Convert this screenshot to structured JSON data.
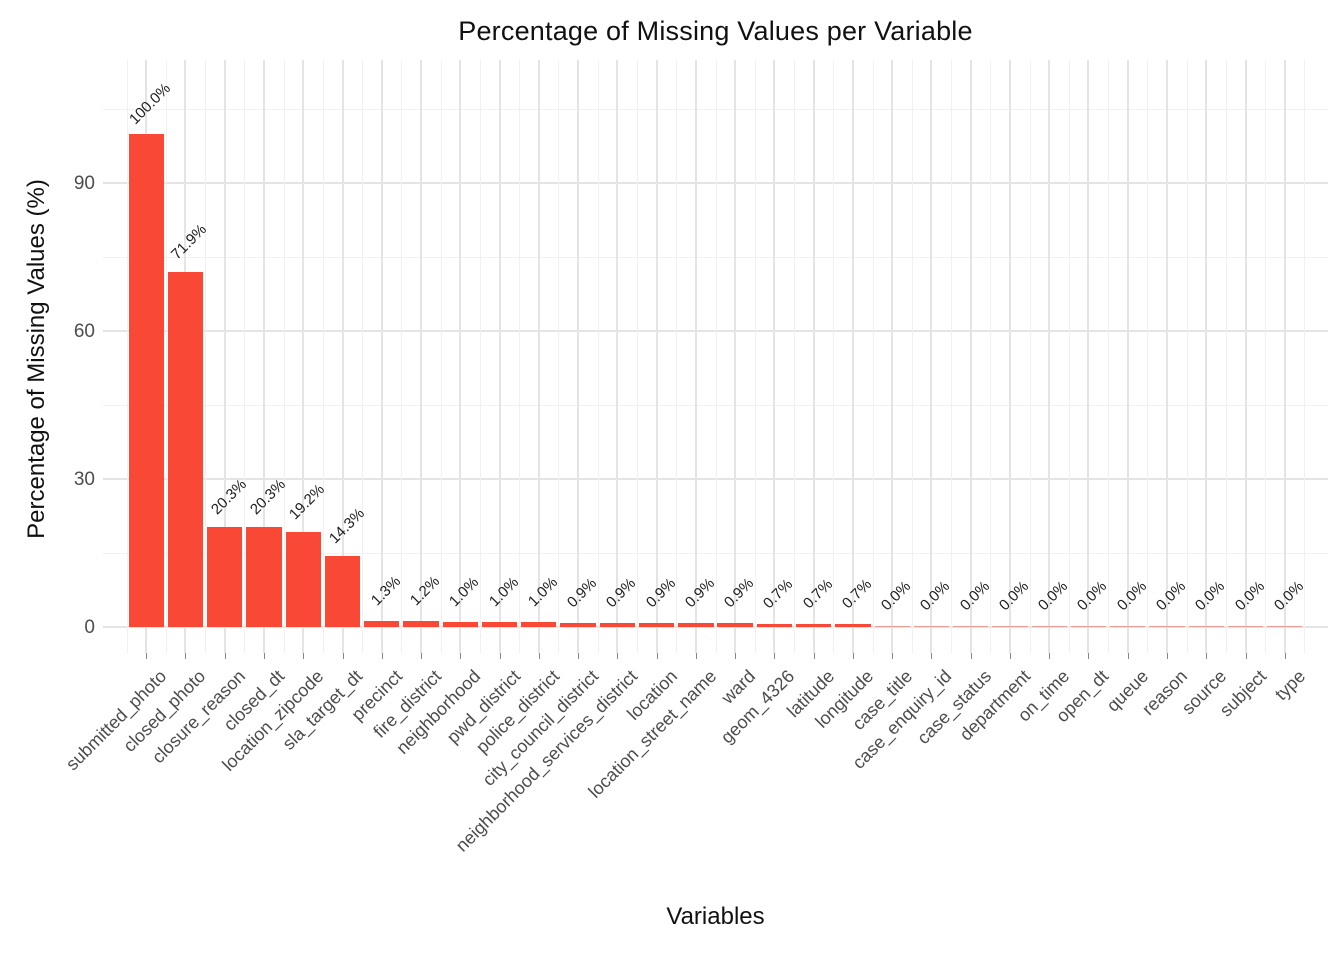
{
  "chart_data": {
    "type": "bar",
    "title": "Percentage of Missing Values per Variable",
    "xlabel": "Variables",
    "ylabel": "Percentage of Missing Values (%)",
    "categories": [
      "submitted_photo",
      "closed_photo",
      "closure_reason",
      "closed_dt",
      "location_zipcode",
      "sla_target_dt",
      "precinct",
      "fire_district",
      "neighborhood",
      "pwd_district",
      "police_district",
      "city_council_district",
      "neighborhood_services_district",
      "location",
      "location_street_name",
      "ward",
      "geom_4326",
      "latitude",
      "longitude",
      "case_title",
      "case_enquiry_id",
      "case_status",
      "department",
      "on_time",
      "open_dt",
      "queue",
      "reason",
      "source",
      "subject",
      "type"
    ],
    "values": [
      100.0,
      71.9,
      20.3,
      20.3,
      19.2,
      14.3,
      1.3,
      1.2,
      1.0,
      1.0,
      1.0,
      0.9,
      0.9,
      0.9,
      0.9,
      0.9,
      0.7,
      0.7,
      0.7,
      0.0,
      0.0,
      0.0,
      0.0,
      0.0,
      0.0,
      0.0,
      0.0,
      0.0,
      0.0,
      0.0
    ],
    "value_labels": [
      "100.0%",
      "71.9%",
      "20.3%",
      "20.3%",
      "19.2%",
      "14.3%",
      "1.3%",
      "1.2%",
      "1.0%",
      "1.0%",
      "1.0%",
      "0.9%",
      "0.9%",
      "0.9%",
      "0.9%",
      "0.9%",
      "0.7%",
      "0.7%",
      "0.7%",
      "0.0%",
      "0.0%",
      "0.0%",
      "0.0%",
      "0.0%",
      "0.0%",
      "0.0%",
      "0.0%",
      "0.0%",
      "0.0%",
      "0.0%"
    ],
    "yticks": [
      0,
      30,
      60,
      90
    ],
    "minor_yticks": [
      15,
      45,
      75,
      105
    ],
    "ylim": [
      -5,
      115
    ],
    "bar_color": "#fa4837",
    "grid_color_major": "#e4e4e4",
    "grid_color_minor": "#f1f1f1",
    "background": "#ffffff",
    "legend": "none",
    "bar_label_angle_deg": 45,
    "x_tick_label_angle_deg": 45
  }
}
